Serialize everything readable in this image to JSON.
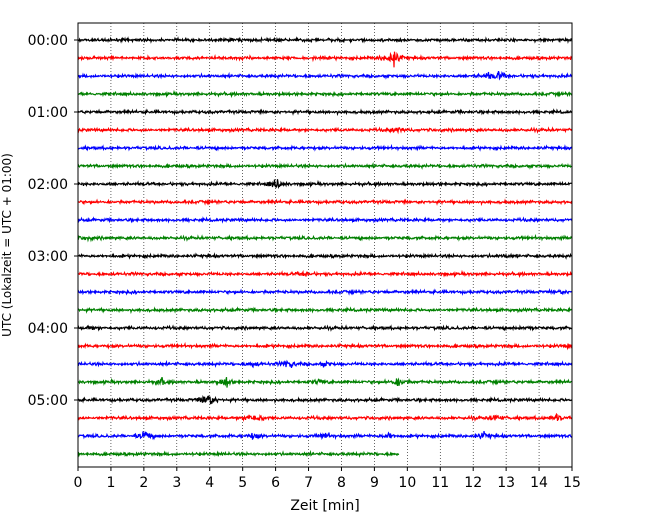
{
  "chart_data": {
    "type": "line",
    "title": "",
    "xlabel": "Zeit  [min]",
    "ylabel": "UTC (Lokalzeit = UTC + 01:00)",
    "xlim": [
      0,
      15
    ],
    "x_ticks": [
      0,
      1,
      2,
      3,
      4,
      5,
      6,
      7,
      8,
      9,
      10,
      11,
      12,
      13,
      14,
      15
    ],
    "x_tick_labels": [
      "0",
      "1",
      "2",
      "3",
      "4",
      "5",
      "6",
      "7",
      "8",
      "9",
      "10",
      "11",
      "12",
      "13",
      "14",
      "15"
    ],
    "y_tick_labels": [
      "00:00",
      "01:00",
      "02:00",
      "03:00",
      "04:00",
      "05:00"
    ],
    "grid": "vertical dotted",
    "rows_per_hour": 4,
    "minutes_per_row": 15,
    "trace_colors": [
      "#000000",
      "#ff0000",
      "#0000ff",
      "#008000"
    ],
    "traces": [
      {
        "start": "00:00",
        "end_min": 15,
        "color": "#000000",
        "events": []
      },
      {
        "start": "00:15",
        "end_min": 15,
        "color": "#ff0000",
        "events": [
          {
            "min": 9.6,
            "amp": 1.0
          },
          {
            "min": 9.4,
            "amp": 0.6
          }
        ]
      },
      {
        "start": "00:30",
        "end_min": 15,
        "color": "#0000ff",
        "events": [
          {
            "min": 12.8,
            "amp": 0.55
          },
          {
            "min": 12.4,
            "amp": 0.4
          }
        ]
      },
      {
        "start": "00:45",
        "end_min": 15,
        "color": "#008000",
        "events": []
      },
      {
        "start": "01:00",
        "end_min": 15,
        "color": "#000000",
        "events": []
      },
      {
        "start": "01:15",
        "end_min": 15,
        "color": "#ff0000",
        "events": [
          {
            "min": 9.7,
            "amp": 0.5
          }
        ]
      },
      {
        "start": "01:30",
        "end_min": 15,
        "color": "#0000ff",
        "events": []
      },
      {
        "start": "01:45",
        "end_min": 15,
        "color": "#008000",
        "events": []
      },
      {
        "start": "02:00",
        "end_min": 15,
        "color": "#000000",
        "events": [
          {
            "min": 6.05,
            "amp": 0.7
          }
        ]
      },
      {
        "start": "02:15",
        "end_min": 15,
        "color": "#ff0000",
        "events": []
      },
      {
        "start": "02:30",
        "end_min": 15,
        "color": "#0000ff",
        "events": []
      },
      {
        "start": "02:45",
        "end_min": 15,
        "color": "#008000",
        "events": [
          {
            "min": 0.3,
            "amp": 0.25
          }
        ]
      },
      {
        "start": "03:00",
        "end_min": 15,
        "color": "#000000",
        "events": [
          {
            "min": 13.0,
            "amp": 0.2
          }
        ]
      },
      {
        "start": "03:15",
        "end_min": 15,
        "color": "#ff0000",
        "events": [
          {
            "min": 6.9,
            "amp": 0.35
          }
        ]
      },
      {
        "start": "03:30",
        "end_min": 15,
        "color": "#0000ff",
        "events": [
          {
            "min": 14.6,
            "amp": 0.25
          }
        ]
      },
      {
        "start": "03:45",
        "end_min": 15,
        "color": "#008000",
        "events": []
      },
      {
        "start": "04:00",
        "end_min": 15,
        "color": "#000000",
        "events": [
          {
            "min": 0.35,
            "amp": 0.3
          },
          {
            "min": 13.6,
            "amp": 0.25
          }
        ]
      },
      {
        "start": "04:15",
        "end_min": 15,
        "color": "#ff0000",
        "events": [
          {
            "min": 14.9,
            "amp": 0.2
          }
        ]
      },
      {
        "start": "04:30",
        "end_min": 15,
        "color": "#0000ff",
        "events": [
          {
            "min": 5.3,
            "amp": 0.45
          },
          {
            "min": 6.4,
            "amp": 0.7
          },
          {
            "min": 7.5,
            "amp": 0.3
          }
        ]
      },
      {
        "start": "04:45",
        "end_min": 15,
        "color": "#008000",
        "events": [
          {
            "min": 2.5,
            "amp": 0.5
          },
          {
            "min": 4.5,
            "amp": 0.75
          },
          {
            "min": 7.3,
            "amp": 0.35
          },
          {
            "min": 9.75,
            "amp": 0.9
          }
        ]
      },
      {
        "start": "05:00",
        "end_min": 15,
        "color": "#000000",
        "events": [
          {
            "min": 3.9,
            "amp": 0.9
          },
          {
            "min": 4.0,
            "amp": 0.5
          }
        ]
      },
      {
        "start": "05:15",
        "end_min": 15,
        "color": "#ff0000",
        "events": [
          {
            "min": 5.2,
            "amp": 0.6
          },
          {
            "min": 5.5,
            "amp": 0.4
          },
          {
            "min": 12.7,
            "amp": 0.5
          },
          {
            "min": 14.5,
            "amp": 0.7
          }
        ]
      },
      {
        "start": "05:30",
        "end_min": 15,
        "color": "#0000ff",
        "events": [
          {
            "min": 2.05,
            "amp": 0.85
          },
          {
            "min": 5.35,
            "amp": 0.5
          },
          {
            "min": 7.5,
            "amp": 0.5
          },
          {
            "min": 9.45,
            "amp": 0.65
          },
          {
            "min": 12.3,
            "amp": 0.45
          }
        ]
      },
      {
        "start": "05:45",
        "end_min": 9.75,
        "color": "#008000",
        "events": []
      }
    ]
  }
}
